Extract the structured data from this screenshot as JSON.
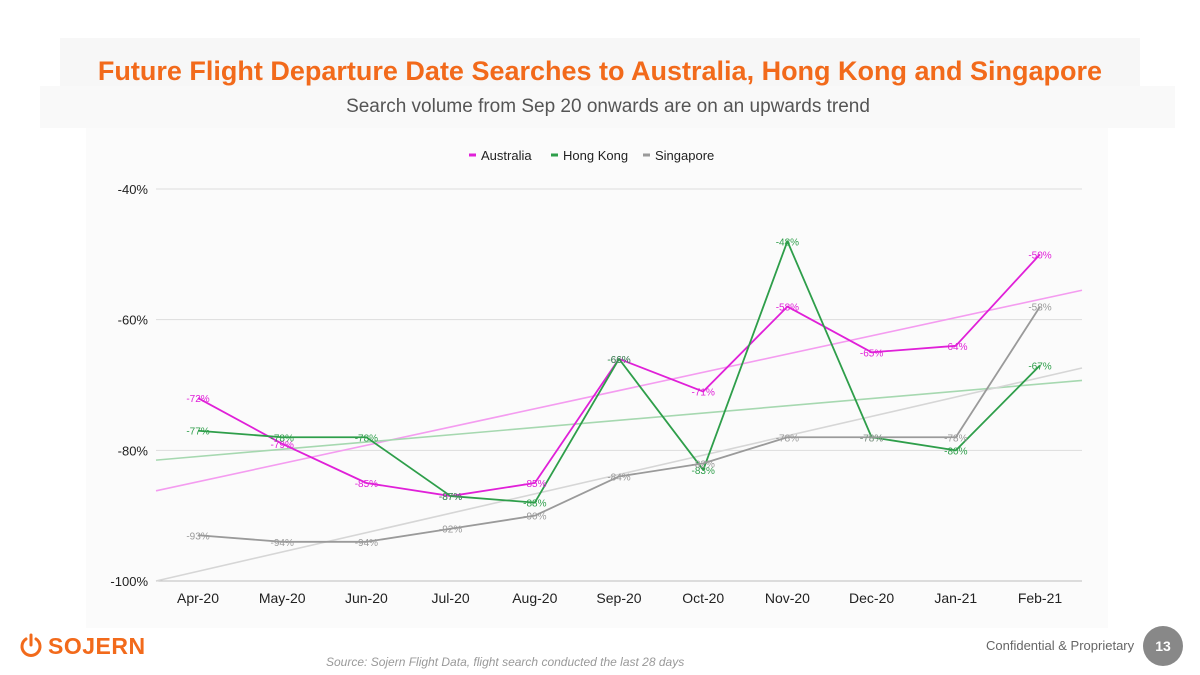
{
  "header": {
    "title": "Future Flight Departure Date Searches to Australia, Hong Kong and Singapore",
    "subtitle": "Search volume from Sep 20 onwards are on an upwards trend"
  },
  "footer": {
    "logo_text": "SOJERN",
    "source": "Source: Sojern Flight Data, flight search conducted the last 28 days",
    "confidential": "Confidential & Proprietary",
    "page_number": "13"
  },
  "colors": {
    "accent": "#f26a1b",
    "australia": "#e020d8",
    "hong_kong": "#2e9e4a",
    "singapore": "#9a9a9a"
  },
  "chart_data": {
    "type": "line",
    "title": "Future Flight Departure Date Searches to Australia, Hong Kong and Singapore",
    "xlabel": "",
    "ylabel": "",
    "categories": [
      "Apr-20",
      "May-20",
      "Jun-20",
      "Jul-20",
      "Aug-20",
      "Sep-20",
      "Oct-20",
      "Nov-20",
      "Dec-20",
      "Jan-21",
      "Feb-21"
    ],
    "ylim": [
      -100,
      -40
    ],
    "yticks": [
      -40,
      -60,
      -80,
      -100
    ],
    "ytick_labels": [
      "-40%",
      "-60%",
      "-80%",
      "-100%"
    ],
    "grid": true,
    "legend_position": "top-center",
    "series": [
      {
        "name": "Australia",
        "color": "#e020d8",
        "trend_color": "#f49cf0",
        "values": [
          -72,
          -79,
          -85,
          -87,
          -85,
          -66,
          -71,
          -58,
          -65,
          -64,
          -50
        ],
        "labels": [
          "-72%",
          "-79%",
          "-85%",
          "-87%",
          "-85%",
          "-66%",
          "-71%",
          "-58%",
          "-65%",
          "-64%",
          "-50%"
        ],
        "trend": [
          -86.2,
          -55.5
        ]
      },
      {
        "name": "Hong Kong",
        "color": "#2e9e4a",
        "trend_color": "#a6d8b0",
        "values": [
          -77,
          -78,
          -78,
          -87,
          -88,
          -66,
          -83,
          -48,
          -78,
          -80,
          -67
        ],
        "labels": [
          "-77%",
          "-78%",
          "-78%",
          "-87%",
          "-88%",
          "-66%",
          "-83%",
          "-48%",
          "-78%",
          "-80%",
          "-67%"
        ],
        "trend": [
          -81.5,
          -69.3
        ]
      },
      {
        "name": "Singapore",
        "color": "#9a9a9a",
        "trend_color": "#d6d6d6",
        "values": [
          -93,
          -94,
          -94,
          -92,
          -90,
          -84,
          -82,
          -78,
          -78,
          -78,
          -58
        ],
        "labels": [
          "-93%",
          "-94%",
          "-94%",
          "-92%",
          "-90%",
          "-84%",
          "-82%",
          "-78%",
          "-78%",
          "-78%",
          "-58%"
        ],
        "trend": [
          -100,
          -67.4
        ]
      }
    ]
  }
}
